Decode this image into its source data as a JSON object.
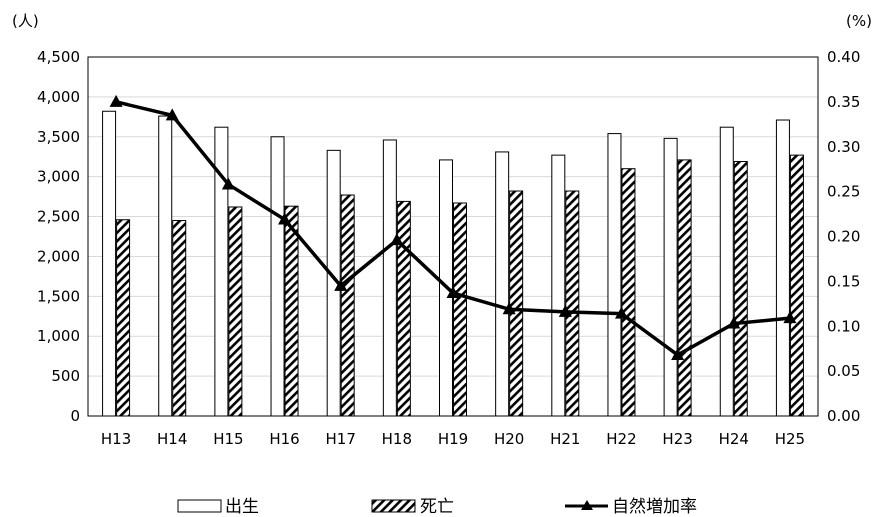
{
  "chart_data": {
    "type": "bar",
    "categories": [
      "H13",
      "H14",
      "H15",
      "H16",
      "H17",
      "H18",
      "H19",
      "H20",
      "H21",
      "H22",
      "H23",
      "H24",
      "H25"
    ],
    "series": [
      {
        "name": "出生",
        "type": "bar",
        "axis": "left",
        "values": [
          3820,
          3760,
          3620,
          3500,
          3330,
          3460,
          3210,
          3310,
          3270,
          3540,
          3480,
          3620,
          3710
        ]
      },
      {
        "name": "死亡",
        "type": "bar",
        "axis": "left",
        "values": [
          2460,
          2450,
          2620,
          2630,
          2770,
          2690,
          2670,
          2820,
          2820,
          3100,
          3210,
          3190,
          3270
        ]
      },
      {
        "name": "自然増加率",
        "type": "line",
        "axis": "right",
        "values": [
          0.35,
          0.335,
          0.258,
          0.219,
          0.145,
          0.196,
          0.137,
          0.119,
          0.116,
          0.114,
          0.068,
          0.103,
          0.109
        ]
      }
    ],
    "left_axis": {
      "unit": "(人)",
      "ylim": [
        0,
        4500
      ],
      "ticks": [
        "0",
        "500",
        "1,000",
        "1,500",
        "2,000",
        "2,500",
        "3,000",
        "3,500",
        "4,000",
        "4,500"
      ]
    },
    "right_axis": {
      "unit": "(%)",
      "ylim": [
        0,
        0.4
      ],
      "ticks": [
        "0.00",
        "0.05",
        "0.10",
        "0.15",
        "0.20",
        "0.25",
        "0.30",
        "0.35",
        "0.40"
      ]
    },
    "grid": true,
    "legend": {
      "position": "bottom"
    },
    "title": "",
    "xlabel": "",
    "ylabel": ""
  }
}
